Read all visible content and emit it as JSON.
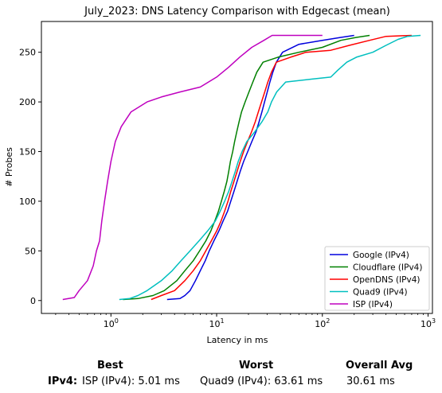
{
  "chart_data": {
    "type": "line",
    "title": "July_2023: DNS Latency Comparison with Edgecast (mean)",
    "xlabel": "Latency in ms",
    "ylabel": "# Probes",
    "xscale": "log",
    "xlim": [
      0.22,
      1100
    ],
    "ylim": [
      -13,
      281
    ],
    "x_ticks": [
      {
        "value": 1,
        "label": "10^0"
      },
      {
        "value": 10,
        "label": "10^1"
      },
      {
        "value": 100,
        "label": "10^2"
      },
      {
        "value": 1000,
        "label": "10^3"
      }
    ],
    "y_ticks": [
      0,
      50,
      100,
      150,
      200,
      250
    ],
    "grid": false,
    "legend": "bottom-right",
    "series": [
      {
        "name": "Google (IPv4)",
        "color": "#0000dd",
        "points": [
          [
            3.4,
            1
          ],
          [
            4.5,
            2
          ],
          [
            5,
            5
          ],
          [
            5.6,
            10
          ],
          [
            6.3,
            20
          ],
          [
            7,
            30
          ],
          [
            7.8,
            40
          ],
          [
            8.5,
            50
          ],
          [
            9.4,
            60
          ],
          [
            10.5,
            70
          ],
          [
            11.5,
            80
          ],
          [
            12.7,
            90
          ],
          [
            13.6,
            100
          ],
          [
            14.6,
            110
          ],
          [
            15.6,
            120
          ],
          [
            16.7,
            130
          ],
          [
            18,
            140
          ],
          [
            19.7,
            150
          ],
          [
            21.5,
            160
          ],
          [
            23.6,
            170
          ],
          [
            25.2,
            180
          ],
          [
            26.8,
            190
          ],
          [
            28.4,
            200
          ],
          [
            30.1,
            210
          ],
          [
            31.9,
            220
          ],
          [
            34,
            230
          ],
          [
            36.7,
            240
          ],
          [
            42,
            250
          ],
          [
            60,
            258
          ],
          [
            100,
            262
          ],
          [
            150,
            265
          ],
          [
            200,
            267
          ]
        ]
      },
      {
        "name": "Cloudflare (IPv4)",
        "color": "#008000",
        "points": [
          [
            1.3,
            1
          ],
          [
            1.8,
            2
          ],
          [
            2.5,
            5
          ],
          [
            3.2,
            10
          ],
          [
            4.2,
            20
          ],
          [
            5,
            30
          ],
          [
            6,
            40
          ],
          [
            6.9,
            50
          ],
          [
            7.9,
            60
          ],
          [
            8.8,
            70
          ],
          [
            9.6,
            80
          ],
          [
            10.4,
            90
          ],
          [
            11.1,
            100
          ],
          [
            11.8,
            110
          ],
          [
            12.5,
            120
          ],
          [
            13,
            130
          ],
          [
            13.5,
            140
          ],
          [
            14.2,
            150
          ],
          [
            14.8,
            160
          ],
          [
            15.5,
            170
          ],
          [
            16.3,
            180
          ],
          [
            17.2,
            190
          ],
          [
            18.6,
            200
          ],
          [
            20.2,
            210
          ],
          [
            22,
            220
          ],
          [
            24,
            230
          ],
          [
            27.5,
            240
          ],
          [
            38,
            245
          ],
          [
            60,
            250
          ],
          [
            100,
            255
          ],
          [
            150,
            262
          ],
          [
            210,
            265
          ],
          [
            280,
            267
          ]
        ]
      },
      {
        "name": "OpenDNS (IPv4)",
        "color": "#ff0000",
        "points": [
          [
            2.4,
            1
          ],
          [
            3,
            5
          ],
          [
            4,
            10
          ],
          [
            5,
            20
          ],
          [
            6,
            30
          ],
          [
            7,
            40
          ],
          [
            7.9,
            50
          ],
          [
            8.9,
            60
          ],
          [
            10,
            70
          ],
          [
            11,
            80
          ],
          [
            11.9,
            90
          ],
          [
            12.8,
            100
          ],
          [
            13.6,
            110
          ],
          [
            14.6,
            120
          ],
          [
            15.6,
            130
          ],
          [
            16.7,
            140
          ],
          [
            18,
            150
          ],
          [
            19.6,
            160
          ],
          [
            21.4,
            170
          ],
          [
            23.2,
            180
          ],
          [
            24.8,
            190
          ],
          [
            26.6,
            200
          ],
          [
            28.5,
            210
          ],
          [
            30.5,
            220
          ],
          [
            33,
            230
          ],
          [
            36.7,
            240
          ],
          [
            50,
            245
          ],
          [
            70,
            250
          ],
          [
            120,
            252
          ],
          [
            180,
            257
          ],
          [
            280,
            262
          ],
          [
            400,
            266
          ],
          [
            700,
            267
          ]
        ]
      },
      {
        "name": "Quad9 (IPv4)",
        "color": "#00bfbf",
        "points": [
          [
            1.2,
            1
          ],
          [
            1.5,
            2
          ],
          [
            1.8,
            5
          ],
          [
            2.2,
            10
          ],
          [
            3,
            20
          ],
          [
            3.8,
            30
          ],
          [
            4.6,
            40
          ],
          [
            5.6,
            50
          ],
          [
            6.8,
            60
          ],
          [
            8.2,
            70
          ],
          [
            9.7,
            80
          ],
          [
            10.8,
            90
          ],
          [
            11.9,
            100
          ],
          [
            13,
            110
          ],
          [
            14,
            120
          ],
          [
            15,
            130
          ],
          [
            16,
            140
          ],
          [
            17.4,
            150
          ],
          [
            19.3,
            160
          ],
          [
            23,
            170
          ],
          [
            26.8,
            180
          ],
          [
            30.5,
            190
          ],
          [
            33,
            200
          ],
          [
            37,
            210
          ],
          [
            45,
            220
          ],
          [
            80,
            223
          ],
          [
            120,
            225
          ],
          [
            140,
            232
          ],
          [
            170,
            240
          ],
          [
            210,
            245
          ],
          [
            300,
            250
          ],
          [
            400,
            257
          ],
          [
            520,
            263
          ],
          [
            640,
            266
          ],
          [
            850,
            267
          ]
        ]
      },
      {
        "name": "ISP (IPv4)",
        "color": "#bf00bf",
        "points": [
          [
            0.35,
            1
          ],
          [
            0.45,
            3
          ],
          [
            0.5,
            10
          ],
          [
            0.6,
            20
          ],
          [
            0.68,
            35
          ],
          [
            0.73,
            50
          ],
          [
            0.78,
            60
          ],
          [
            0.82,
            80
          ],
          [
            0.87,
            100
          ],
          [
            0.93,
            120
          ],
          [
            1.0,
            140
          ],
          [
            1.1,
            160
          ],
          [
            1.25,
            175
          ],
          [
            1.55,
            190
          ],
          [
            2.2,
            200
          ],
          [
            3,
            205
          ],
          [
            4.5,
            210
          ],
          [
            7,
            215
          ],
          [
            10,
            225
          ],
          [
            13,
            235
          ],
          [
            16.5,
            245
          ],
          [
            21.5,
            255
          ],
          [
            28,
            262
          ],
          [
            33.5,
            267
          ],
          [
            100,
            267
          ]
        ]
      }
    ]
  },
  "summary": {
    "best_header": "Best",
    "worst_header": "Worst",
    "avg_header": "Overall Avg",
    "row_label": "IPv4:",
    "best_value": "ISP (IPv4): 5.01 ms",
    "worst_value": "Quad9 (IPv4): 63.61 ms",
    "avg_value": "30.61 ms"
  }
}
